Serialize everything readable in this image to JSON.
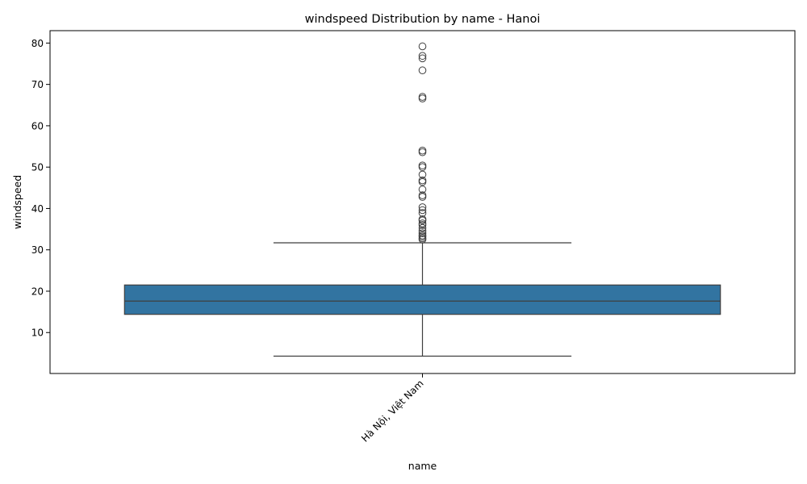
{
  "chart_data": {
    "type": "box",
    "title": "windspeed Distribution by name - Hanoi",
    "xlabel": "name",
    "ylabel": "windspeed",
    "categories": [
      "Hà Nội, Việt Nam"
    ],
    "ylim": [
      0.1,
      83.0
    ],
    "yticks": [
      10,
      20,
      30,
      40,
      50,
      60,
      70,
      80
    ],
    "grid": false,
    "box_color": "#3274a1",
    "line_color": "#3f3f3f",
    "boxes": [
      {
        "category": "Hà Nội, Việt Nam",
        "whisker_low": 4.3,
        "q1": 14.4,
        "median": 17.6,
        "q3": 21.5,
        "whisker_high": 31.7,
        "outliers": [
          32.5,
          32.8,
          33.2,
          33.5,
          34.0,
          34.6,
          35.3,
          36.0,
          36.4,
          37.1,
          37.4,
          38.9,
          39.6,
          40.3,
          42.8,
          43.2,
          44.6,
          46.4,
          46.8,
          48.2,
          50.0,
          50.4,
          53.6,
          54.0,
          66.6,
          67.0,
          73.4,
          76.3,
          76.9,
          79.2
        ]
      }
    ]
  }
}
